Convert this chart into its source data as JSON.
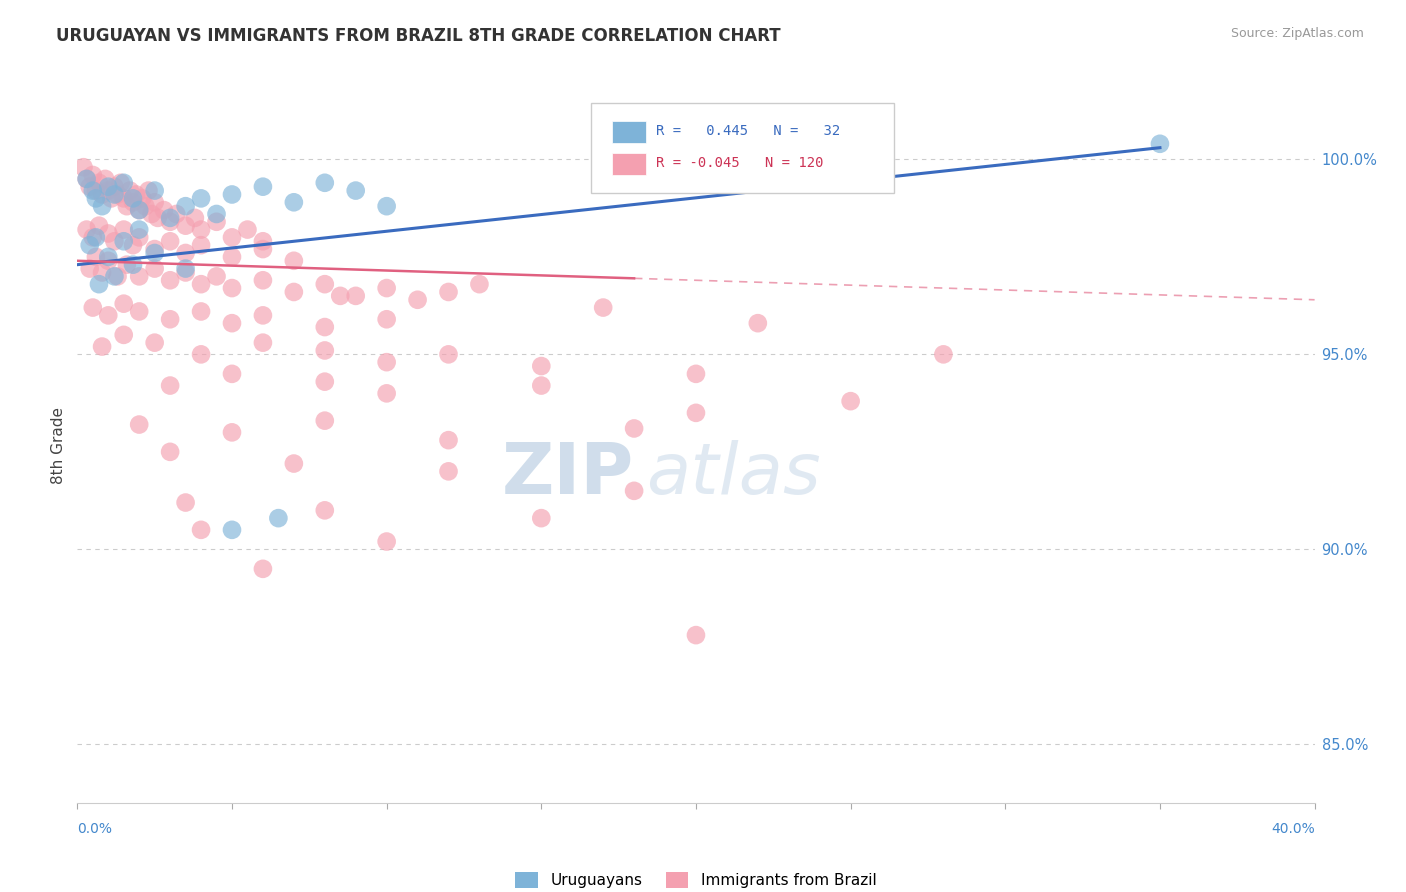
{
  "title": "URUGUAYAN VS IMMIGRANTS FROM BRAZIL 8TH GRADE CORRELATION CHART",
  "source": "Source: ZipAtlas.com",
  "ylabel": "8th Grade",
  "ylabel_right_values": [
    85.0,
    90.0,
    95.0,
    100.0
  ],
  "xmin": 0.0,
  "xmax": 40.0,
  "ymin": 83.5,
  "ymax": 101.8,
  "color_uruguayan": "#7EB3D8",
  "color_brazil": "#F4A0B0",
  "color_line_uruguayan": "#3A6BBF",
  "color_line_brazil": "#E06080",
  "watermark_zip": "ZIP",
  "watermark_atlas": "atlas",
  "uruguayan_points": [
    [
      0.3,
      99.5
    ],
    [
      0.5,
      99.2
    ],
    [
      0.6,
      99.0
    ],
    [
      0.8,
      98.8
    ],
    [
      1.0,
      99.3
    ],
    [
      1.2,
      99.1
    ],
    [
      1.5,
      99.4
    ],
    [
      1.8,
      99.0
    ],
    [
      2.0,
      98.7
    ],
    [
      2.5,
      99.2
    ],
    [
      3.0,
      98.5
    ],
    [
      3.5,
      98.8
    ],
    [
      4.0,
      99.0
    ],
    [
      4.5,
      98.6
    ],
    [
      5.0,
      99.1
    ],
    [
      6.0,
      99.3
    ],
    [
      7.0,
      98.9
    ],
    [
      8.0,
      99.4
    ],
    [
      9.0,
      99.2
    ],
    [
      10.0,
      98.8
    ],
    [
      0.4,
      97.8
    ],
    [
      0.6,
      98.0
    ],
    [
      1.0,
      97.5
    ],
    [
      1.5,
      97.9
    ],
    [
      2.0,
      98.2
    ],
    [
      0.7,
      96.8
    ],
    [
      1.2,
      97.0
    ],
    [
      1.8,
      97.3
    ],
    [
      2.5,
      97.6
    ],
    [
      3.5,
      97.2
    ],
    [
      5.0,
      90.5
    ],
    [
      6.5,
      90.8
    ],
    [
      35.0,
      100.4
    ]
  ],
  "brazil_points": [
    [
      0.2,
      99.8
    ],
    [
      0.3,
      99.5
    ],
    [
      0.4,
      99.3
    ],
    [
      0.5,
      99.6
    ],
    [
      0.6,
      99.2
    ],
    [
      0.7,
      99.4
    ],
    [
      0.8,
      99.1
    ],
    [
      0.9,
      99.5
    ],
    [
      1.0,
      99.2
    ],
    [
      1.1,
      99.0
    ],
    [
      1.2,
      99.3
    ],
    [
      1.3,
      99.1
    ],
    [
      1.4,
      99.4
    ],
    [
      1.5,
      99.0
    ],
    [
      1.6,
      98.8
    ],
    [
      1.7,
      99.2
    ],
    [
      1.8,
      98.9
    ],
    [
      1.9,
      99.1
    ],
    [
      2.0,
      98.7
    ],
    [
      2.1,
      99.0
    ],
    [
      2.2,
      98.8
    ],
    [
      2.3,
      99.2
    ],
    [
      2.4,
      98.6
    ],
    [
      2.5,
      98.9
    ],
    [
      2.6,
      98.5
    ],
    [
      2.8,
      98.7
    ],
    [
      3.0,
      98.4
    ],
    [
      3.2,
      98.6
    ],
    [
      3.5,
      98.3
    ],
    [
      3.8,
      98.5
    ],
    [
      4.0,
      98.2
    ],
    [
      4.5,
      98.4
    ],
    [
      5.0,
      98.0
    ],
    [
      5.5,
      98.2
    ],
    [
      6.0,
      97.9
    ],
    [
      0.3,
      98.2
    ],
    [
      0.5,
      98.0
    ],
    [
      0.7,
      98.3
    ],
    [
      1.0,
      98.1
    ],
    [
      1.2,
      97.9
    ],
    [
      1.5,
      98.2
    ],
    [
      1.8,
      97.8
    ],
    [
      2.0,
      98.0
    ],
    [
      2.5,
      97.7
    ],
    [
      3.0,
      97.9
    ],
    [
      3.5,
      97.6
    ],
    [
      4.0,
      97.8
    ],
    [
      5.0,
      97.5
    ],
    [
      6.0,
      97.7
    ],
    [
      7.0,
      97.4
    ],
    [
      0.4,
      97.2
    ],
    [
      0.6,
      97.5
    ],
    [
      0.8,
      97.1
    ],
    [
      1.0,
      97.4
    ],
    [
      1.3,
      97.0
    ],
    [
      1.6,
      97.3
    ],
    [
      2.0,
      97.0
    ],
    [
      2.5,
      97.2
    ],
    [
      3.0,
      96.9
    ],
    [
      3.5,
      97.1
    ],
    [
      4.0,
      96.8
    ],
    [
      4.5,
      97.0
    ],
    [
      5.0,
      96.7
    ],
    [
      6.0,
      96.9
    ],
    [
      7.0,
      96.6
    ],
    [
      8.0,
      96.8
    ],
    [
      9.0,
      96.5
    ],
    [
      10.0,
      96.7
    ],
    [
      11.0,
      96.4
    ],
    [
      12.0,
      96.6
    ],
    [
      0.5,
      96.2
    ],
    [
      1.0,
      96.0
    ],
    [
      1.5,
      96.3
    ],
    [
      2.0,
      96.1
    ],
    [
      3.0,
      95.9
    ],
    [
      4.0,
      96.1
    ],
    [
      5.0,
      95.8
    ],
    [
      6.0,
      96.0
    ],
    [
      8.0,
      95.7
    ],
    [
      10.0,
      95.9
    ],
    [
      0.8,
      95.2
    ],
    [
      1.5,
      95.5
    ],
    [
      2.5,
      95.3
    ],
    [
      4.0,
      95.0
    ],
    [
      6.0,
      95.3
    ],
    [
      8.0,
      95.1
    ],
    [
      10.0,
      94.8
    ],
    [
      12.0,
      95.0
    ],
    [
      15.0,
      94.7
    ],
    [
      20.0,
      94.5
    ],
    [
      3.0,
      94.2
    ],
    [
      5.0,
      94.5
    ],
    [
      8.0,
      94.3
    ],
    [
      10.0,
      94.0
    ],
    [
      15.0,
      94.2
    ],
    [
      20.0,
      93.5
    ],
    [
      25.0,
      93.8
    ],
    [
      2.0,
      93.2
    ],
    [
      5.0,
      93.0
    ],
    [
      8.0,
      93.3
    ],
    [
      12.0,
      92.8
    ],
    [
      18.0,
      93.1
    ],
    [
      3.0,
      92.5
    ],
    [
      7.0,
      92.2
    ],
    [
      12.0,
      92.0
    ],
    [
      18.0,
      91.5
    ],
    [
      3.5,
      91.2
    ],
    [
      8.0,
      91.0
    ],
    [
      15.0,
      90.8
    ],
    [
      4.0,
      90.5
    ],
    [
      10.0,
      90.2
    ],
    [
      6.0,
      89.5
    ],
    [
      20.0,
      87.8
    ],
    [
      8.5,
      96.5
    ],
    [
      13.0,
      96.8
    ],
    [
      17.0,
      96.2
    ],
    [
      22.0,
      95.8
    ],
    [
      28.0,
      95.0
    ]
  ]
}
